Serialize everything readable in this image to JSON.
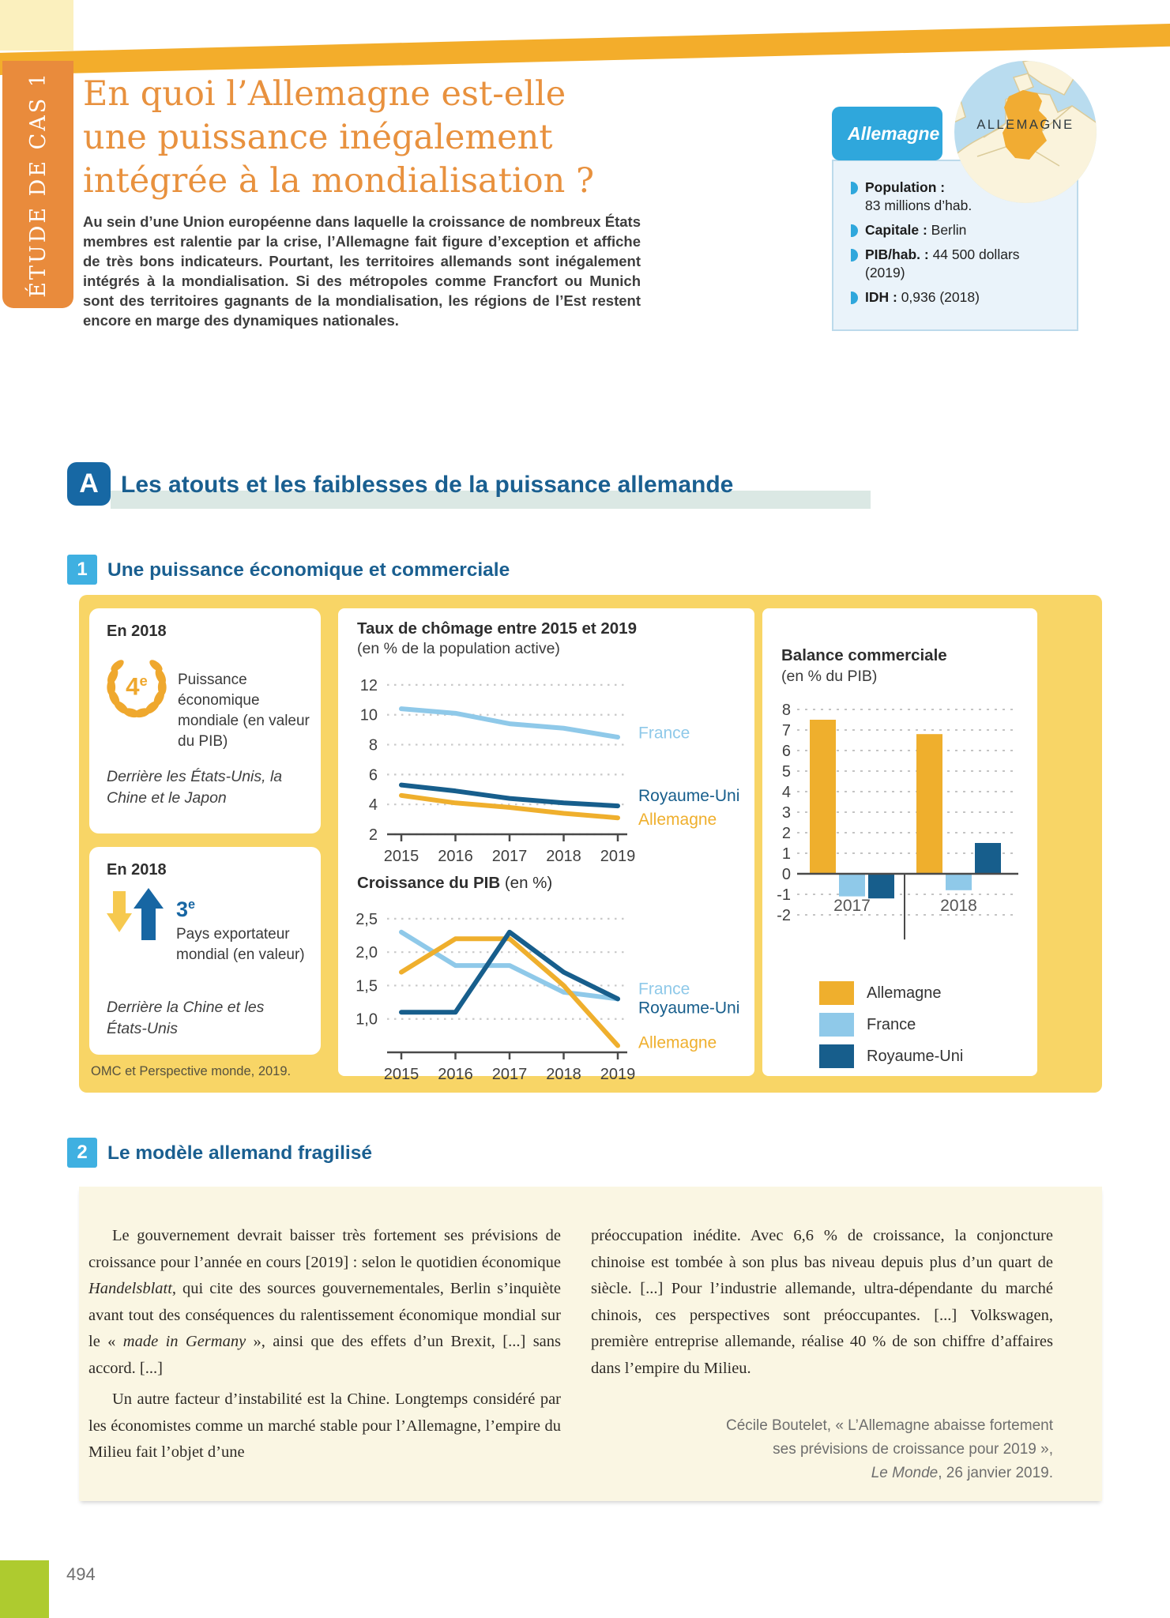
{
  "sidebar": {
    "label": "ÉTUDE DE CAS 1"
  },
  "title": {
    "line1": "En quoi l’Allemagne est-elle",
    "line2": "une puissance inégalement",
    "line3": "intégrée à la mondialisation ?"
  },
  "intro": "Au sein d’une Union européenne dans laquelle la croissance de nombreux États membres est ralentie par la crise, l’Allemagne fait figure d’exception et affiche de très bons indicateurs. Pourtant, les territoires allemands sont inégalement intégrés à la mondialisation. Si des métropoles comme Francfort ou Munich sont des territoires gagnants de la mondialisation, les régions de l’Est restent encore en marge des dynamiques nationales.",
  "country_card": {
    "tab": "Allemagne",
    "map_label": "ALLEMAGNE",
    "items": [
      {
        "label": "Population :",
        "v1": "",
        "v2": "83 millions d’hab."
      },
      {
        "label": "Capitale :",
        "v1": "Berlin",
        "v2": ""
      },
      {
        "label": "PIB/hab. :",
        "v1": "44 500 dollars",
        "v2": "(2019)"
      },
      {
        "label": "IDH :",
        "v1": "0,936 (2018)",
        "v2": ""
      }
    ]
  },
  "sectionA": {
    "badge": "A",
    "title": "Les atouts et les faiblesses de la puissance allemande"
  },
  "sub1": {
    "num": "1",
    "title": "Une puissance économique et commerciale"
  },
  "facts": {
    "card1": {
      "heading": "En 2018",
      "rank": "4",
      "rank_sup": "e",
      "text": "Puissance économique mondiale (en valeur du PIB)",
      "note": "Derrière les États-Unis, la Chine et le Japon"
    },
    "card2": {
      "heading": "En 2018",
      "rank": "3",
      "rank_sup": "e",
      "text": "Pays exportateur mondial (en valeur)",
      "note": "Derrière la Chine et les États-Unis"
    },
    "source": "OMC et Perspective monde, 2019."
  },
  "chart_data": [
    {
      "type": "line",
      "title": "Taux de chômage entre 2015 et 2019",
      "subtitle": "(en % de la population active)",
      "x": [
        2015,
        2016,
        2017,
        2018,
        2019
      ],
      "ylim": [
        2,
        13
      ],
      "yticks": [
        2,
        4,
        6,
        8,
        10,
        12
      ],
      "grid": "dotted",
      "legend_position": "right-of-line",
      "series": [
        {
          "name": "France",
          "color": "#8FC9E9",
          "values": [
            10.4,
            10.1,
            9.4,
            9.1,
            8.5
          ],
          "label_y": 8.8
        },
        {
          "name": "Allemagne",
          "color": "#EFAF2D",
          "values": [
            4.6,
            4.1,
            3.8,
            3.4,
            3.1
          ],
          "label_y": 3.0
        },
        {
          "name": "Royaume-Uni",
          "color": "#175E8C",
          "values": [
            5.3,
            4.9,
            4.4,
            4.1,
            3.9
          ],
          "label_y": 4.6
        }
      ]
    },
    {
      "type": "line",
      "title": "Croissance du PIB",
      "subtitle": "(en %)",
      "x": [
        2015,
        2016,
        2017,
        2018,
        2019
      ],
      "ylim": [
        0.5,
        2.7
      ],
      "yticks": [
        1.0,
        1.5,
        2.0,
        2.5
      ],
      "ytick_labels": [
        "1,0",
        "1,5",
        "2,0",
        "2,5"
      ],
      "grid": "dotted",
      "legend_position": "right-of-line",
      "series": [
        {
          "name": "France",
          "color": "#8FC9E9",
          "values": [
            2.3,
            1.8,
            1.8,
            1.4,
            1.3
          ],
          "label_y": 1.45
        },
        {
          "name": "Allemagne",
          "color": "#EFAF2D",
          "values": [
            1.7,
            2.2,
            2.2,
            1.5,
            0.6
          ],
          "label_y": 0.65
        },
        {
          "name": "Royaume-Uni",
          "color": "#175E8C",
          "values": [
            1.1,
            1.1,
            2.3,
            1.7,
            1.3
          ],
          "label_y": 1.17
        }
      ]
    },
    {
      "type": "bar",
      "title": "Balance commerciale",
      "subtitle": "(en % du PIB)",
      "categories": [
        "2017",
        "2018"
      ],
      "ylim": [
        -2,
        8
      ],
      "yticks": [
        -2,
        -1,
        0,
        1,
        2,
        3,
        4,
        5,
        6,
        7,
        8
      ],
      "grid": "dotted",
      "legend_position": "below",
      "series": [
        {
          "name": "Allemagne",
          "color": "#EFAF2D",
          "values": [
            7.5,
            6.8
          ]
        },
        {
          "name": "France",
          "color": "#8FC9E9",
          "values": [
            -1.1,
            -0.8
          ]
        },
        {
          "name": "Royaume-Uni",
          "color": "#175E8C",
          "values": [
            -1.2,
            1.5
          ]
        }
      ],
      "legend": [
        "Allemagne",
        "France",
        "Royaume-Uni"
      ]
    }
  ],
  "sub2": {
    "num": "2",
    "title": "Le modèle allemand fragilisé"
  },
  "doc2": {
    "col1": {
      "p1a": "Le gouvernement devrait baisser très fortement ses prévisions de croissance pour l’année en cours [2019] : selon le quotidien économique ",
      "p1b": "Handelsblatt",
      "p1c": ", qui cite des sources gouvernementales, Berlin s’inquiète avant tout des conséquences du ralentissement économique mondial sur le « ",
      "p1d": "made in Germany",
      "p1e": " », ainsi que des effets d’un Brexit, [...] sans accord. [...]",
      "p2": "Un autre facteur d’instabilité est la Chine. Longtemps considéré par les économistes comme un marché stable pour l’Allemagne, l’empire du Milieu fait l’objet d’une"
    },
    "col2": {
      "p1": "préoccupation inédite. Avec 6,6 % de croissance, la conjoncture chinoise est tombée à son plus bas niveau depuis plus d’un quart de siècle. [...] Pour l’industrie allemande, ultra-dépendante du marché chinois, ces perspectives sont préoccupantes. [...] Volkswagen, première entreprise allemande, réalise 40 % de son chiffre d’affaires dans l’empire du Milieu."
    },
    "cite1": "Cécile Boutelet, « L’Allemagne abaisse fortement",
    "cite2": "ses prévisions de croissance pour 2019 »,",
    "cite3a": "Le Monde",
    "cite3b": ", 26 janvier 2019."
  },
  "footer": {
    "page_number": "494"
  }
}
